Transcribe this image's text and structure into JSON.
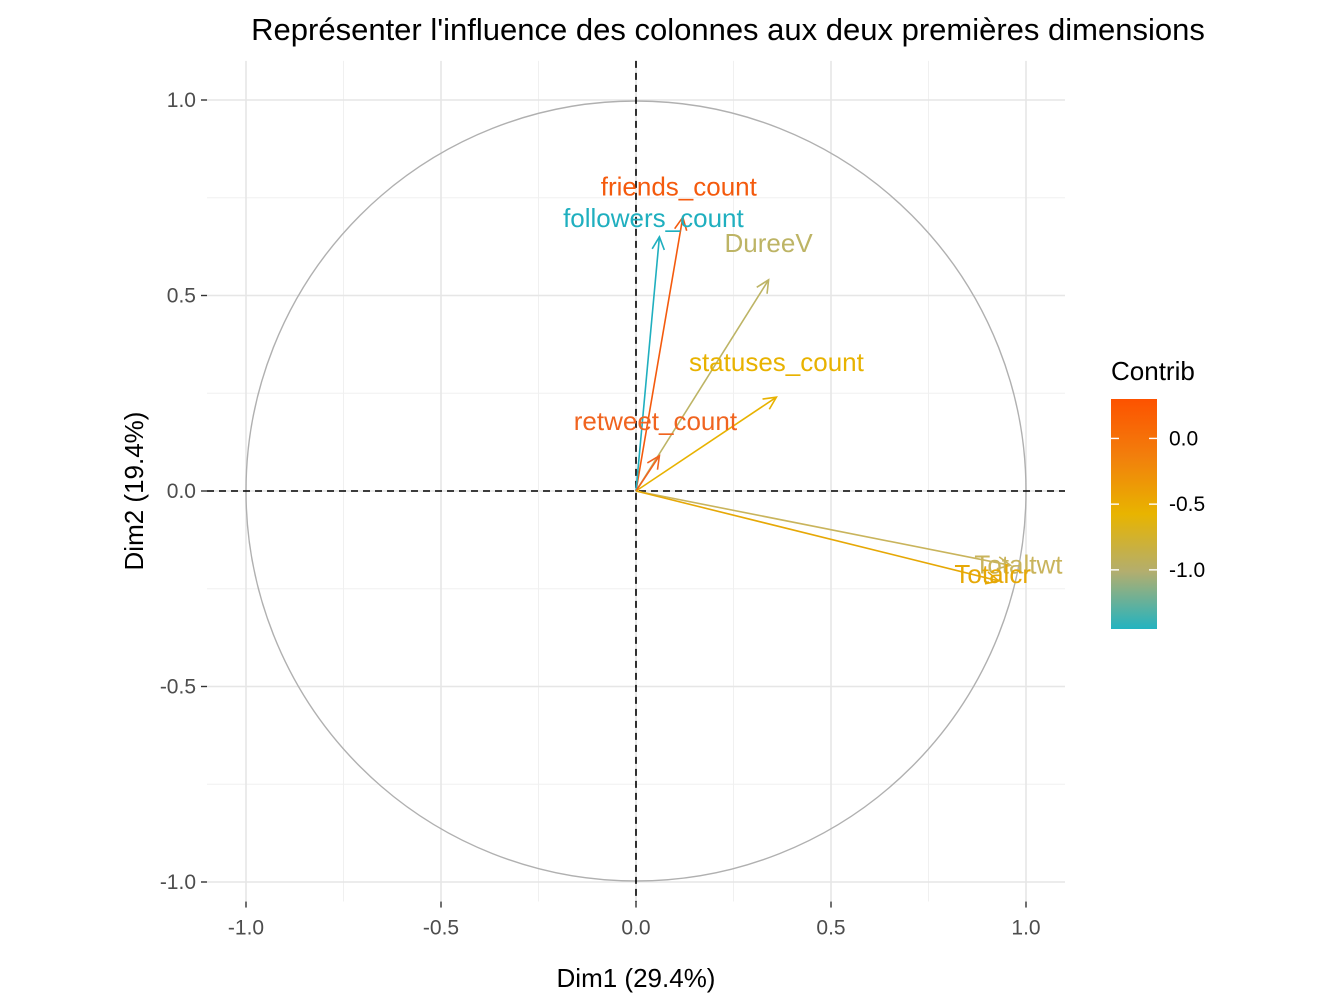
{
  "chart_data": {
    "type": "scatter",
    "subtype": "pca-correlation-circle",
    "title": "Représenter l'influence des colonnes aux deux premières dimensions",
    "xlabel": "Dim1 (29.4%)",
    "ylabel": "Dim2 (19.4%)",
    "xlim": [
      -1.1,
      1.1
    ],
    "ylim": [
      -1.05,
      1.1
    ],
    "xticks": [
      -1.0,
      -0.5,
      0.0,
      0.5,
      1.0
    ],
    "xtick_labels": [
      "-1.0",
      "-0.5",
      "0.0",
      "0.5",
      "1.0"
    ],
    "yticks": [
      -1.0,
      -0.5,
      0.0,
      0.5,
      1.0
    ],
    "ytick_labels": [
      "-1.0",
      "-0.5",
      "0.0",
      "0.5",
      "1.0"
    ],
    "grid": true,
    "unit_circle": true,
    "reference_lines": {
      "x": 0,
      "y": 0,
      "style": "dashed"
    },
    "legend": {
      "title": "Contrib",
      "type": "gradient",
      "placement": "right",
      "range": [
        -1.45,
        0.3
      ],
      "ticks": [
        0.0,
        -0.5,
        -1.0
      ],
      "tick_labels": [
        "0.0",
        "-0.5",
        "-1.0"
      ],
      "colors": [
        "#23b3c0",
        "#b3ae6e",
        "#e8b400",
        "#f27f0c",
        "#fd5200"
      ]
    },
    "variables": [
      {
        "name": "friends_count",
        "x": 0.12,
        "y": 0.7,
        "contrib": 0.2,
        "color": "#f45a0d"
      },
      {
        "name": "followers_count",
        "x": 0.06,
        "y": 0.65,
        "contrib": -1.4,
        "color": "#1fafbf"
      },
      {
        "name": "DureeV",
        "x": 0.34,
        "y": 0.54,
        "contrib": -1.0,
        "color": "#bdb465"
      },
      {
        "name": "statuses_count",
        "x": 0.36,
        "y": 0.24,
        "contrib": -0.45,
        "color": "#e8b200"
      },
      {
        "name": "retweet_count",
        "x": 0.06,
        "y": 0.09,
        "contrib": 0.1,
        "color": "#f06420"
      },
      {
        "name": "Totaltwt",
        "x": 0.96,
        "y": -0.19,
        "contrib": -0.9,
        "color": "#c9b45c"
      },
      {
        "name": "Totalcr",
        "x": 0.93,
        "y": -0.23,
        "contrib": -0.35,
        "color": "#e6a806"
      }
    ]
  }
}
